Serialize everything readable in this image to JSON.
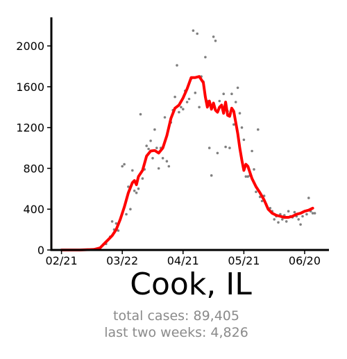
{
  "title": "Cook, IL",
  "stats": {
    "total": "total cases: 89,405",
    "recent": "last two weeks: 4,826"
  },
  "colors": {
    "avg_line": "#ff0000",
    "points": "#808080",
    "axis": "#000000"
  },
  "chart_data": {
    "type": "scatter",
    "title": "Cook, IL",
    "xlabel": "",
    "ylabel": "",
    "x_ticks": [
      "02/21",
      "03/22",
      "04/21",
      "05/21",
      "06/20"
    ],
    "y_ticks": [
      0,
      400,
      800,
      1200,
      1600,
      2000
    ],
    "ylim": [
      0,
      2280
    ],
    "x_range": [
      "2020-02-16",
      "2020-07-02"
    ],
    "grid": false,
    "legend": "none",
    "series": [
      {
        "kind": "daily",
        "points": [
          [
            "2020-03-14",
            60
          ],
          [
            "2020-03-16",
            130
          ],
          [
            "2020-03-17",
            280
          ],
          [
            "2020-03-18",
            200
          ],
          [
            "2020-03-19",
            260
          ],
          [
            "2020-03-20",
            190
          ],
          [
            "2020-03-22",
            820
          ],
          [
            "2020-03-23",
            840
          ],
          [
            "2020-03-24",
            350
          ],
          [
            "2020-03-25",
            620
          ],
          [
            "2020-03-26",
            400
          ],
          [
            "2020-03-27",
            780
          ],
          [
            "2020-03-28",
            580
          ],
          [
            "2020-03-29",
            560
          ],
          [
            "2020-03-30",
            600
          ],
          [
            "2020-03-31",
            1330
          ],
          [
            "2020-04-01",
            700
          ],
          [
            "2020-04-02",
            790
          ],
          [
            "2020-04-03",
            1020
          ],
          [
            "2020-04-04",
            990
          ],
          [
            "2020-04-05",
            1070
          ],
          [
            "2020-04-06",
            900
          ],
          [
            "2020-04-07",
            1180
          ],
          [
            "2020-04-08",
            1000
          ],
          [
            "2020-04-09",
            800
          ],
          [
            "2020-04-10",
            1000
          ],
          [
            "2020-04-11",
            900
          ],
          [
            "2020-04-12",
            1300
          ],
          [
            "2020-04-13",
            870
          ],
          [
            "2020-04-14",
            820
          ],
          [
            "2020-04-15",
            1250
          ],
          [
            "2020-04-16",
            1370
          ],
          [
            "2020-04-17",
            1500
          ],
          [
            "2020-04-18",
            1810
          ],
          [
            "2020-04-19",
            1350
          ],
          [
            "2020-04-20",
            1400
          ],
          [
            "2020-04-21",
            1380
          ],
          [
            "2020-04-22",
            1560
          ],
          [
            "2020-04-23",
            1450
          ],
          [
            "2020-04-24",
            1480
          ],
          [
            "2020-04-25",
            1680
          ],
          [
            "2020-04-26",
            2150
          ],
          [
            "2020-04-27",
            1540
          ],
          [
            "2020-04-28",
            2120
          ],
          [
            "2020-04-29",
            1400
          ],
          [
            "2020-04-30",
            1700
          ],
          [
            "2020-05-01",
            1650
          ],
          [
            "2020-05-02",
            1890
          ],
          [
            "2020-05-03",
            1460
          ],
          [
            "2020-05-04",
            1000
          ],
          [
            "2020-05-05",
            730
          ],
          [
            "2020-05-06",
            2090
          ],
          [
            "2020-05-07",
            2050
          ],
          [
            "2020-05-08",
            950
          ],
          [
            "2020-05-09",
            1460
          ],
          [
            "2020-05-10",
            1420
          ],
          [
            "2020-05-11",
            1530
          ],
          [
            "2020-05-12",
            1010
          ],
          [
            "2020-05-13",
            1360
          ],
          [
            "2020-05-14",
            1000
          ],
          [
            "2020-05-15",
            1530
          ],
          [
            "2020-05-16",
            1230
          ],
          [
            "2020-05-17",
            1450
          ],
          [
            "2020-05-18",
            1590
          ],
          [
            "2020-05-19",
            1340
          ],
          [
            "2020-05-20",
            1200
          ],
          [
            "2020-05-21",
            1080
          ],
          [
            "2020-05-22",
            720
          ],
          [
            "2020-05-23",
            720
          ],
          [
            "2020-05-24",
            730
          ],
          [
            "2020-05-25",
            970
          ],
          [
            "2020-05-26",
            790
          ],
          [
            "2020-05-27",
            570
          ],
          [
            "2020-05-28",
            1180
          ],
          [
            "2020-05-29",
            520
          ],
          [
            "2020-05-30",
            480
          ],
          [
            "2020-05-31",
            530
          ],
          [
            "2020-06-01",
            450
          ],
          [
            "2020-06-02",
            400
          ],
          [
            "2020-06-03",
            410
          ],
          [
            "2020-06-04",
            380
          ],
          [
            "2020-06-05",
            300
          ],
          [
            "2020-06-06",
            330
          ],
          [
            "2020-06-07",
            270
          ],
          [
            "2020-06-08",
            350
          ],
          [
            "2020-06-09",
            300
          ],
          [
            "2020-06-10",
            340
          ],
          [
            "2020-06-11",
            280
          ],
          [
            "2020-06-12",
            380
          ],
          [
            "2020-06-13",
            330
          ],
          [
            "2020-06-14",
            320
          ],
          [
            "2020-06-15",
            370
          ],
          [
            "2020-06-16",
            330
          ],
          [
            "2020-06-17",
            300
          ],
          [
            "2020-06-18",
            250
          ],
          [
            "2020-06-19",
            330
          ],
          [
            "2020-06-20",
            380
          ],
          [
            "2020-06-21",
            350
          ],
          [
            "2020-06-22",
            510
          ],
          [
            "2020-06-23",
            380
          ],
          [
            "2020-06-24",
            360
          ],
          [
            "2020-06-25",
            360
          ]
        ]
      },
      {
        "kind": "average",
        "points": [
          [
            "2020-02-21",
            0
          ],
          [
            "2020-03-01",
            0
          ],
          [
            "2020-03-08",
            5
          ],
          [
            "2020-03-11",
            20
          ],
          [
            "2020-03-13",
            60
          ],
          [
            "2020-03-15",
            100
          ],
          [
            "2020-03-17",
            140
          ],
          [
            "2020-03-19",
            200
          ],
          [
            "2020-03-21",
            300
          ],
          [
            "2020-03-23",
            420
          ],
          [
            "2020-03-25",
            560
          ],
          [
            "2020-03-27",
            660
          ],
          [
            "2020-03-28",
            680
          ],
          [
            "2020-03-29",
            640
          ],
          [
            "2020-03-30",
            720
          ],
          [
            "2020-04-01",
            780
          ],
          [
            "2020-04-03",
            920
          ],
          [
            "2020-04-05",
            970
          ],
          [
            "2020-04-07",
            975
          ],
          [
            "2020-04-09",
            950
          ],
          [
            "2020-04-11",
            1000
          ],
          [
            "2020-04-13",
            1120
          ],
          [
            "2020-04-15",
            1290
          ],
          [
            "2020-04-17",
            1390
          ],
          [
            "2020-04-19",
            1420
          ],
          [
            "2020-04-21",
            1490
          ],
          [
            "2020-04-23",
            1580
          ],
          [
            "2020-04-25",
            1690
          ],
          [
            "2020-04-27",
            1690
          ],
          [
            "2020-04-29",
            1700
          ],
          [
            "2020-05-01",
            1640
          ],
          [
            "2020-05-02",
            1500
          ],
          [
            "2020-05-03",
            1400
          ],
          [
            "2020-05-04",
            1460
          ],
          [
            "2020-05-05",
            1380
          ],
          [
            "2020-05-06",
            1440
          ],
          [
            "2020-05-07",
            1370
          ],
          [
            "2020-05-08",
            1350
          ],
          [
            "2020-05-09",
            1400
          ],
          [
            "2020-05-10",
            1420
          ],
          [
            "2020-05-11",
            1340
          ],
          [
            "2020-05-12",
            1450
          ],
          [
            "2020-05-13",
            1320
          ],
          [
            "2020-05-14",
            1310
          ],
          [
            "2020-05-15",
            1390
          ],
          [
            "2020-05-16",
            1360
          ],
          [
            "2020-05-17",
            1250
          ],
          [
            "2020-05-18",
            1140
          ],
          [
            "2020-05-19",
            1000
          ],
          [
            "2020-05-20",
            880
          ],
          [
            "2020-05-21",
            780
          ],
          [
            "2020-05-22",
            840
          ],
          [
            "2020-05-23",
            820
          ],
          [
            "2020-05-24",
            760
          ],
          [
            "2020-05-25",
            700
          ],
          [
            "2020-05-27",
            620
          ],
          [
            "2020-05-29",
            560
          ],
          [
            "2020-05-31",
            490
          ],
          [
            "2020-06-02",
            400
          ],
          [
            "2020-06-04",
            360
          ],
          [
            "2020-06-06",
            340
          ],
          [
            "2020-06-08",
            330
          ],
          [
            "2020-06-10",
            320
          ],
          [
            "2020-06-12",
            320
          ],
          [
            "2020-06-14",
            330
          ],
          [
            "2020-06-16",
            350
          ],
          [
            "2020-06-18",
            360
          ],
          [
            "2020-06-20",
            380
          ],
          [
            "2020-06-22",
            390
          ],
          [
            "2020-06-24",
            410
          ]
        ]
      }
    ]
  }
}
